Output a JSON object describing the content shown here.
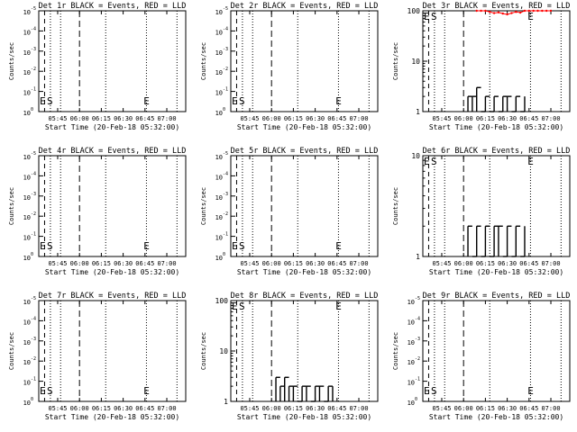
{
  "panels": [
    {
      "title": "Det 1r BLACK = Events, RED = LLD",
      "ylabel": "Counts/sec",
      "xlabel": "Start Time (20-Feb-18 05:32:00)",
      "scale": "exp",
      "yticks": [
        {
          "e": "0",
          "v": 0
        },
        {
          "e": "-1",
          "v": 1
        },
        {
          "e": "-2",
          "v": 2
        },
        {
          "e": "-3",
          "v": 3
        },
        {
          "e": "-4",
          "v": 4
        },
        {
          "e": "-5",
          "v": 5
        }
      ],
      "markers": [
        "S",
        "E"
      ],
      "markers_left": "E"
    },
    {
      "title": "Det 2r BLACK = Events, RED = LLD",
      "ylabel": "Counts/sec",
      "xlabel": "Start Time (20-Feb-18 05:32:00)",
      "scale": "exp",
      "yticks": [
        {
          "e": "0",
          "v": 0
        },
        {
          "e": "-1",
          "v": 1
        },
        {
          "e": "-2",
          "v": 2
        },
        {
          "e": "-3",
          "v": 3
        },
        {
          "e": "-4",
          "v": 4
        },
        {
          "e": "-5",
          "v": 5
        }
      ],
      "markers": [
        "S",
        "E"
      ],
      "markers_left": "E"
    },
    {
      "title": "Det 3r BLACK = Events, RED = LLD",
      "ylabel": "Counts/sec",
      "xlabel": "Start Time (20-Feb-18 05:32:00)",
      "scale": "log",
      "yticks": [
        {
          "t": "1",
          "v": 1
        },
        {
          "t": "10",
          "v": 10
        },
        {
          "t": "100",
          "v": 100
        }
      ],
      "markers": [
        "S",
        "E"
      ],
      "markers_left": "E"
    },
    {
      "title": "Det 4r BLACK = Events, RED = LLD",
      "ylabel": "Counts/sec",
      "xlabel": "Start Time (20-Feb-18 05:32:00)",
      "scale": "exp",
      "yticks": [
        {
          "e": "0",
          "v": 0
        },
        {
          "e": "-1",
          "v": 1
        },
        {
          "e": "-2",
          "v": 2
        },
        {
          "e": "-3",
          "v": 3
        },
        {
          "e": "-4",
          "v": 4
        },
        {
          "e": "-5",
          "v": 5
        }
      ],
      "markers": [
        "S",
        "E"
      ],
      "markers_left": "E"
    },
    {
      "title": "Det 5r BLACK = Events, RED = LLD",
      "ylabel": "Counts/sec",
      "xlabel": "Start Time (20-Feb-18 05:32:00)",
      "scale": "exp",
      "yticks": [
        {
          "e": "0",
          "v": 0
        },
        {
          "e": "-1",
          "v": 1
        },
        {
          "e": "-2",
          "v": 2
        },
        {
          "e": "-3",
          "v": 3
        },
        {
          "e": "-4",
          "v": 4
        },
        {
          "e": "-5",
          "v": 5
        }
      ],
      "markers": [
        "S",
        "E"
      ],
      "markers_left": "E"
    },
    {
      "title": "Det 6r BLACK = Events, RED = LLD",
      "ylabel": "Counts/sec",
      "xlabel": "Start Time (20-Feb-18 05:32:00)",
      "scale": "log",
      "yticks": [
        {
          "t": "1",
          "v": 1
        },
        {
          "t": "10",
          "v": 10
        }
      ],
      "markers": [
        "S",
        "E"
      ],
      "markers_left": "E"
    },
    {
      "title": "Det 7r BLACK = Events, RED = LLD",
      "ylabel": "Counts/sec",
      "xlabel": "Start Time (20-Feb-18 05:32:00)",
      "scale": "exp",
      "yticks": [
        {
          "e": "0",
          "v": 0
        },
        {
          "e": "-1",
          "v": 1
        },
        {
          "e": "-2",
          "v": 2
        },
        {
          "e": "-3",
          "v": 3
        },
        {
          "e": "-4",
          "v": 4
        },
        {
          "e": "-5",
          "v": 5
        }
      ],
      "markers": [
        "S",
        "E"
      ],
      "markers_left": "E"
    },
    {
      "title": "Det 8r BLACK = Events, RED = LLD",
      "ylabel": "Counts/sec",
      "xlabel": "Start Time (20-Feb-18 05:32:00)",
      "scale": "log",
      "yticks": [
        {
          "t": "1",
          "v": 1
        },
        {
          "t": "10",
          "v": 10
        },
        {
          "t": "100",
          "v": 100
        }
      ],
      "markers": [
        "S",
        "E"
      ],
      "markers_left": "E"
    },
    {
      "title": "Det 9r BLACK = Events, RED = LLD",
      "ylabel": "Counts/sec",
      "xlabel": "Start Time (20-Feb-18 05:32:00)",
      "scale": "exp",
      "yticks": [
        {
          "e": "0",
          "v": 0
        },
        {
          "e": "-1",
          "v": 1
        },
        {
          "e": "-2",
          "v": 2
        },
        {
          "e": "-3",
          "v": 3
        },
        {
          "e": "-4",
          "v": 4
        },
        {
          "e": "-5",
          "v": 5
        }
      ],
      "markers": [
        "S",
        "E"
      ],
      "markers_left": "E"
    }
  ],
  "xticks": [
    "05:45",
    "06:00",
    "06:15",
    "06:30",
    "06:45",
    "07:00"
  ],
  "colors": {
    "events": "#000000",
    "lld": "#ff0000",
    "axes": "#000000",
    "background": "#ffffff"
  },
  "chart_data": [
    {
      "type": "line",
      "title": "Det 1r BLACK = Events, RED = LLD",
      "x_unit": "time",
      "series": []
    },
    {
      "type": "line",
      "title": "Det 2r BLACK = Events, RED = LLD",
      "series": []
    },
    {
      "type": "line",
      "title": "Det 3r BLACK = Events, RED = LLD",
      "yscale": "log",
      "ylim": [
        1,
        100
      ],
      "series": [
        {
          "color": "events",
          "x": [
            "06:03",
            "06:06",
            "06:09",
            "06:12",
            "06:15",
            "06:18",
            "06:21",
            "06:24",
            "06:27",
            "06:30",
            "06:33",
            "06:36",
            "06:39",
            "06:42"
          ],
          "y": [
            2,
            2,
            3,
            1,
            2,
            1,
            2,
            1,
            2,
            2,
            1,
            2,
            1,
            2
          ]
        },
        {
          "color": "lld",
          "x": [
            "06:09",
            "06:12",
            "06:15",
            "06:18",
            "06:21",
            "06:24",
            "06:27",
            "06:30",
            "06:33",
            "06:36",
            "06:39",
            "06:42",
            "06:45",
            "06:48",
            "06:51",
            "06:54",
            "06:57",
            "07:00"
          ],
          "y": [
            100,
            100,
            100,
            95,
            90,
            93,
            88,
            85,
            90,
            95,
            92,
            100,
            100,
            100,
            100,
            100,
            100,
            100
          ]
        }
      ]
    },
    {
      "type": "line",
      "title": "Det 4r BLACK = Events, RED = LLD",
      "series": []
    },
    {
      "type": "line",
      "title": "Det 5r BLACK = Events, RED = LLD",
      "series": []
    },
    {
      "type": "line",
      "title": "Det 6r BLACK = Events, RED = LLD",
      "yscale": "log",
      "ylim": [
        1,
        10
      ],
      "series": [
        {
          "color": "events",
          "x": [
            "06:03",
            "06:06",
            "06:09",
            "06:12",
            "06:15",
            "06:18",
            "06:21",
            "06:24",
            "06:27",
            "06:30",
            "06:33",
            "06:36",
            "06:39",
            "06:42"
          ],
          "y": [
            2,
            1,
            2,
            1,
            2,
            1,
            2,
            2,
            1,
            2,
            1,
            2,
            1,
            2
          ]
        }
      ]
    },
    {
      "type": "line",
      "title": "Det 7r BLACK = Events, RED = LLD",
      "series": []
    },
    {
      "type": "line",
      "title": "Det 8r BLACK = Events, RED = LLD",
      "yscale": "log",
      "ylim": [
        1,
        100
      ],
      "series": [
        {
          "color": "events",
          "x": [
            "06:03",
            "06:06",
            "06:09",
            "06:12",
            "06:15",
            "06:18",
            "06:21",
            "06:24",
            "06:27",
            "06:30",
            "06:33",
            "06:36",
            "06:39",
            "06:42"
          ],
          "y": [
            3,
            2,
            3,
            2,
            2,
            1,
            2,
            2,
            1,
            2,
            2,
            1,
            2,
            2
          ]
        }
      ]
    },
    {
      "type": "line",
      "title": "Det 9r BLACK = Events, RED = LLD",
      "series": []
    }
  ]
}
